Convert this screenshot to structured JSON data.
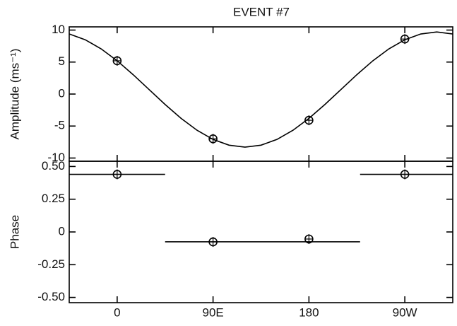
{
  "chart_data": [
    {
      "type": "scatter",
      "title": "EVENT #7",
      "ylabel": "Amplitude (ms⁻¹)",
      "ylim": [
        -10.5,
        10.5
      ],
      "yticks": [
        10,
        5,
        0,
        -5,
        {
          "value": -10,
          "label": "-10"
        }
      ],
      "points": {
        "x": [
          0,
          90,
          180,
          270
        ],
        "y": [
          5.2,
          -7.0,
          -4.1,
          8.6
        ]
      },
      "curve": {
        "x": [
          -45,
          -30,
          -15,
          0,
          15,
          30,
          45,
          60,
          75,
          90,
          105,
          120,
          135,
          150,
          165,
          180,
          195,
          210,
          225,
          240,
          255,
          270,
          285,
          300,
          315
        ],
        "y": [
          9.39,
          8.49,
          7.06,
          5.2,
          3.03,
          0.7,
          -1.63,
          -3.8,
          -5.66,
          -7.09,
          -7.99,
          -8.3,
          -7.99,
          -7.09,
          -5.66,
          -3.8,
          -1.63,
          0.7,
          3.03,
          5.2,
          7.06,
          8.49,
          9.39,
          9.7,
          9.39
        ]
      },
      "color": "#000000"
    },
    {
      "type": "scatter",
      "ylabel": "Phase",
      "xlim": [
        -45,
        315
      ],
      "xticks": [
        0,
        {
          "value": 90,
          "label": "90E"
        },
        180,
        {
          "value": 270,
          "label": "90W"
        }
      ],
      "ylim": [
        -0.54,
        0.54
      ],
      "yticks": [
        {
          "value": 0.5,
          "label": "0.50"
        },
        0.25,
        0,
        -0.25,
        {
          "value": -0.5,
          "label": "-0.50"
        }
      ],
      "points": {
        "x": [
          0,
          90,
          180,
          270
        ],
        "y": [
          0.44,
          -0.076,
          -0.054,
          0.44
        ]
      },
      "segments": [
        {
          "x": [
            -45,
            45
          ],
          "y": 0.44
        },
        {
          "x": [
            45,
            228
          ],
          "y": -0.075
        },
        {
          "x": [
            228,
            315
          ],
          "y": 0.44
        }
      ],
      "color": "#000000"
    }
  ]
}
